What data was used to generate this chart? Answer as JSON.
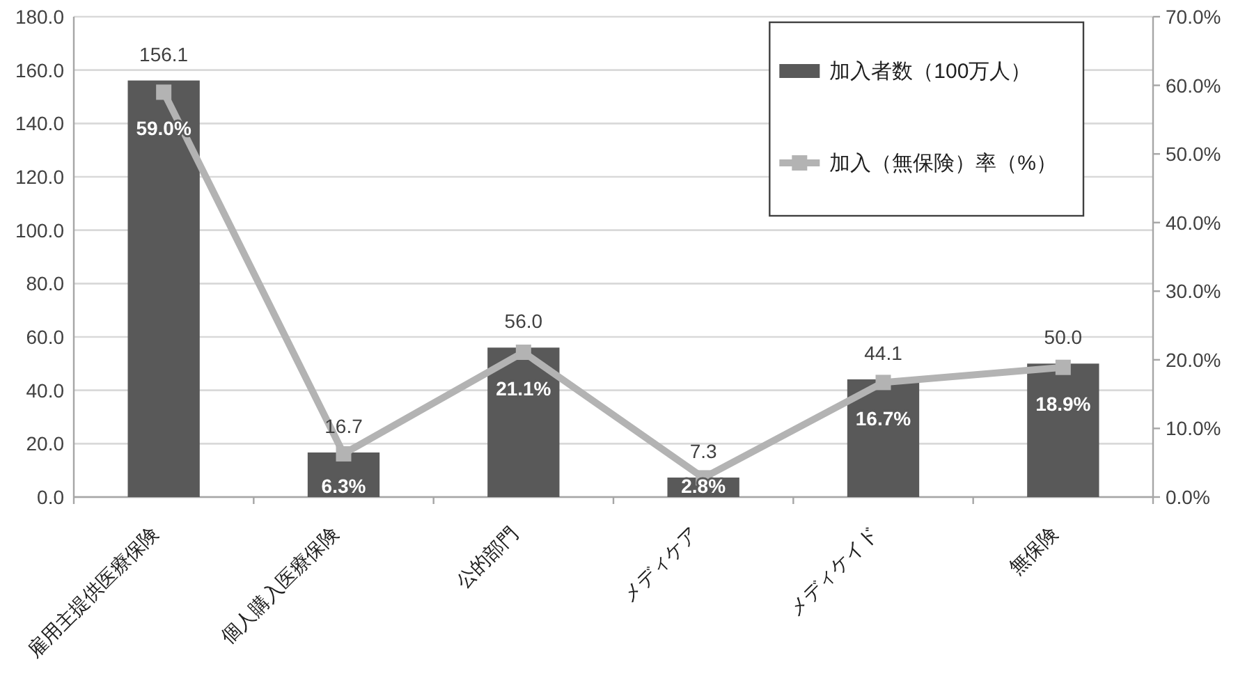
{
  "chart_data": {
    "type": "bar",
    "categories": [
      "雇用主提供医療保険",
      "個人購入医療保険",
      "公的部門",
      "メディケア",
      "メディケイド",
      "無保険"
    ],
    "series": [
      {
        "name": "加入者数（100万人）",
        "color": "#595959",
        "values": [
          156.1,
          16.7,
          56.0,
          7.3,
          44.1,
          50.0
        ],
        "value_labels": [
          "156.1",
          "16.7",
          "56.0",
          "7.3",
          "44.1",
          "50.0"
        ]
      },
      {
        "name": "加入（無保険）率（%）",
        "type": "line",
        "axis": "y2",
        "color": "#b3b3b3",
        "values": [
          59.0,
          6.3,
          21.1,
          2.8,
          16.7,
          18.9
        ],
        "value_labels": [
          "59.0%",
          "6.3%",
          "21.1%",
          "2.8%",
          "16.7%",
          "18.9%"
        ]
      }
    ],
    "ylim": [
      0,
      180
    ],
    "yticks": [
      {
        "value": 0,
        "label": "0.0"
      },
      {
        "value": 20,
        "label": "20.0"
      },
      {
        "value": 40,
        "label": "40.0"
      },
      {
        "value": 60,
        "label": "60.0"
      },
      {
        "value": 80,
        "label": "80.0"
      },
      {
        "value": 100,
        "label": "100.0"
      },
      {
        "value": 120,
        "label": "120.0"
      },
      {
        "value": 140,
        "label": "140.0"
      },
      {
        "value": 160,
        "label": "160.0"
      },
      {
        "value": 180,
        "label": "180.0"
      }
    ],
    "y2lim": [
      0,
      70
    ],
    "y2ticks": [
      {
        "value": 0,
        "label": "0.0%"
      },
      {
        "value": 10,
        "label": "10.0%"
      },
      {
        "value": 20,
        "label": "20.0%"
      },
      {
        "value": 30,
        "label": "30.0%"
      },
      {
        "value": 40,
        "label": "40.0%"
      },
      {
        "value": 50,
        "label": "50.0%"
      },
      {
        "value": 60,
        "label": "60.0%"
      },
      {
        "value": 70,
        "label": "70.0%"
      }
    ],
    "grid": "y",
    "legend": "top right",
    "marker": "square"
  }
}
